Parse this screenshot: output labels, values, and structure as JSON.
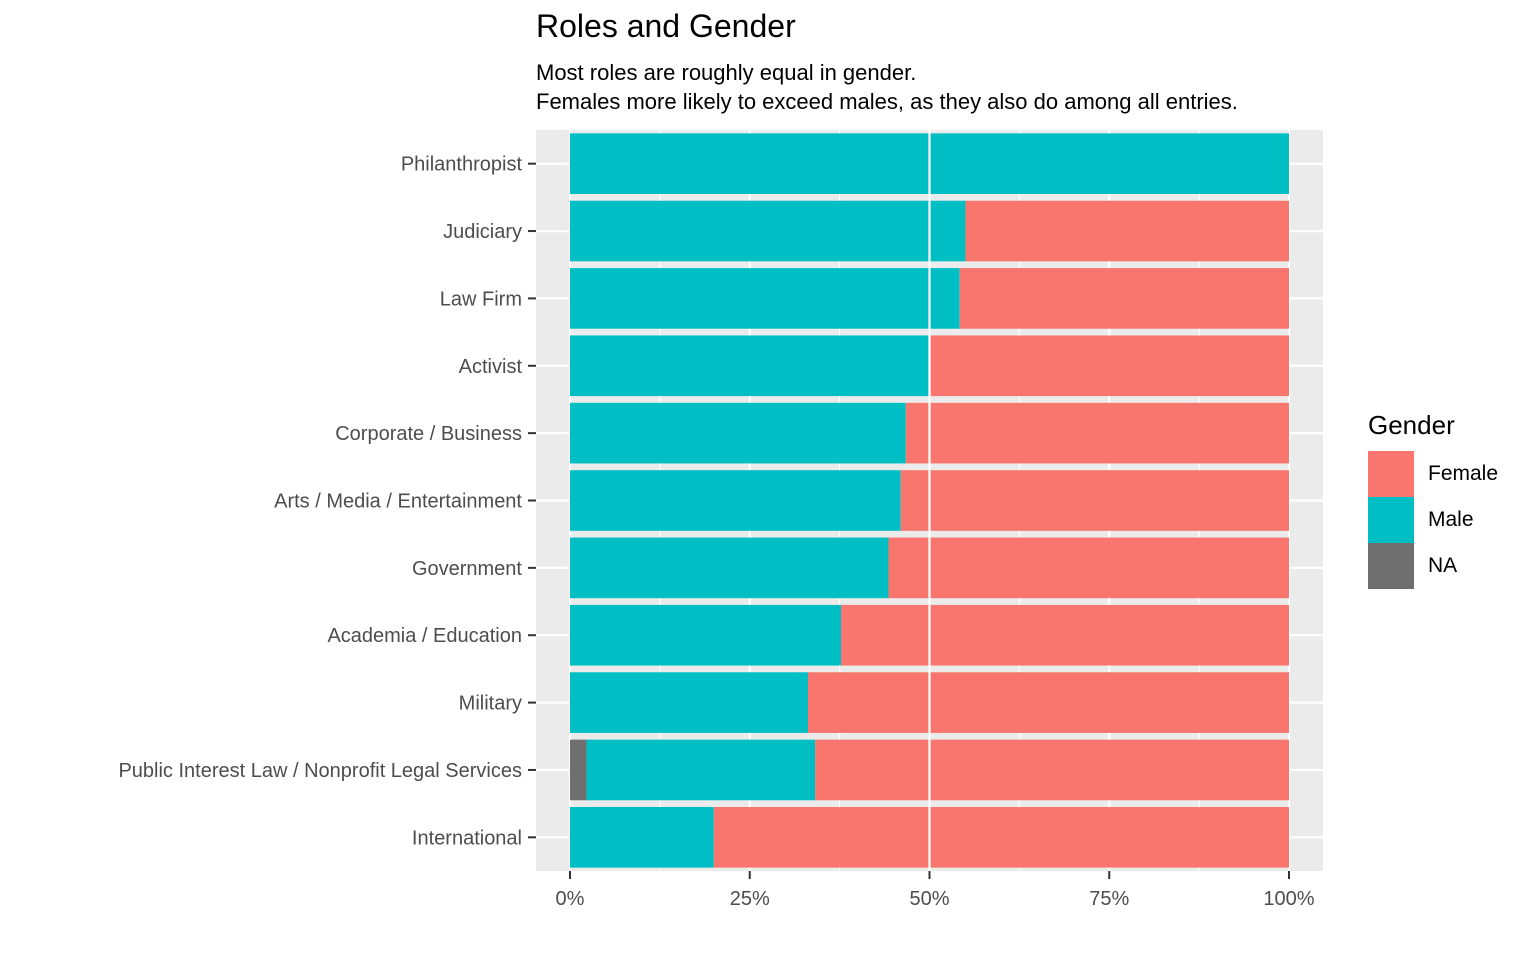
{
  "chart_data": {
    "type": "bar",
    "orientation": "horizontal",
    "stacked": "percent",
    "title": "Roles and Gender",
    "subtitle": [
      "Most roles are roughly equal in gender.",
      "Females more likely to exceed males, as they also do among all entries."
    ],
    "xlabel": "",
    "ylabel": "",
    "xlim": [
      0,
      1
    ],
    "x_ticks": [
      0,
      0.25,
      0.5,
      0.75,
      1
    ],
    "x_tick_labels": [
      "0%",
      "25%",
      "50%",
      "75%",
      "100%"
    ],
    "grid": true,
    "legend_position": "right",
    "legend": {
      "title": "Gender",
      "items": [
        {
          "name": "Female",
          "color": "#F8766D"
        },
        {
          "name": "Male",
          "color": "#00BFC4"
        },
        {
          "name": "NA",
          "color": "#6F6F6F"
        }
      ]
    },
    "categories": [
      "Philanthropist",
      "Judiciary",
      "Law Firm",
      "Activist",
      "Corporate / Business",
      "Arts / Media / Entertainment",
      "Government",
      "Academia / Education",
      "Military",
      "Public Interest Law / Nonprofit Legal Services",
      "International"
    ],
    "series": [
      {
        "name": "NA",
        "color": "#6F6F6F",
        "values": [
          0,
          0,
          0,
          0,
          0,
          0,
          0,
          0,
          0,
          0.023,
          0
        ]
      },
      {
        "name": "Male",
        "color": "#00BFC4",
        "values": [
          1.0,
          0.55,
          0.542,
          0.5,
          0.467,
          0.46,
          0.443,
          0.377,
          0.331,
          0.318,
          0.2
        ]
      },
      {
        "name": "Female",
        "color": "#F8766D",
        "values": [
          0,
          0.45,
          0.458,
          0.5,
          0.533,
          0.54,
          0.557,
          0.623,
          0.669,
          0.659,
          0.8
        ]
      }
    ]
  }
}
